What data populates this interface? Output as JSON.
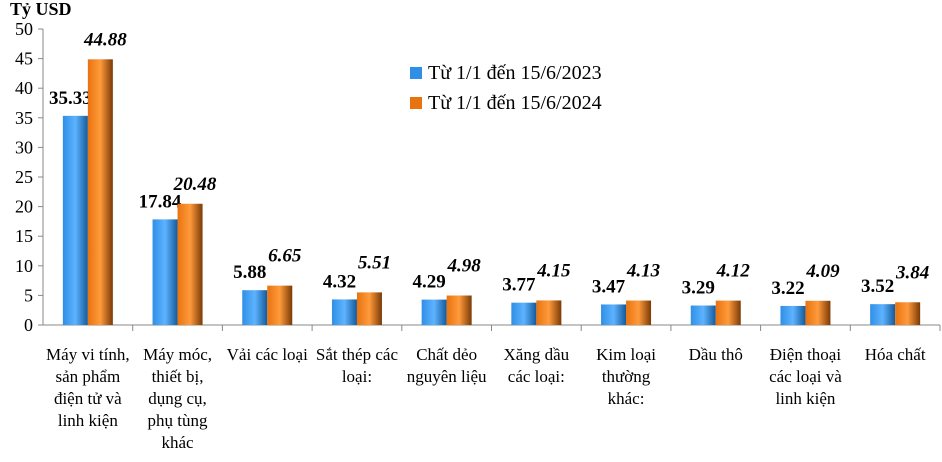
{
  "chart_data": {
    "type": "bar",
    "ylabel": "Tỷ USD",
    "ylim": [
      0,
      50
    ],
    "yticks": [
      0,
      5,
      10,
      15,
      20,
      25,
      30,
      35,
      40,
      45,
      50
    ],
    "grid": false,
    "legend_placement": "top-center",
    "categories": [
      "Máy vi tính, sản phẩm điện tử và linh kiện",
      "Máy móc, thiết bị, dụng cụ, phụ tùng khác",
      "Vải các loại",
      "Sắt thép các loại:",
      "Chất dẻo nguyên liệu",
      "Xăng dầu các loại:",
      "Kim loại thường khác:",
      "Dầu thô",
      "Điện thoại các loại và linh kiện",
      "Hóa chất"
    ],
    "series": [
      {
        "name": "Từ 1/1 đến 15/6/2023",
        "color": "#2f8fe6",
        "values": [
          35.33,
          17.84,
          5.88,
          4.32,
          4.29,
          3.77,
          3.47,
          3.29,
          3.22,
          3.52
        ]
      },
      {
        "name": "Từ 1/1 đến 15/6/2024",
        "color": "#e8730f",
        "values": [
          44.88,
          20.48,
          6.65,
          5.51,
          4.98,
          4.15,
          4.13,
          4.12,
          4.09,
          3.84
        ]
      }
    ]
  }
}
